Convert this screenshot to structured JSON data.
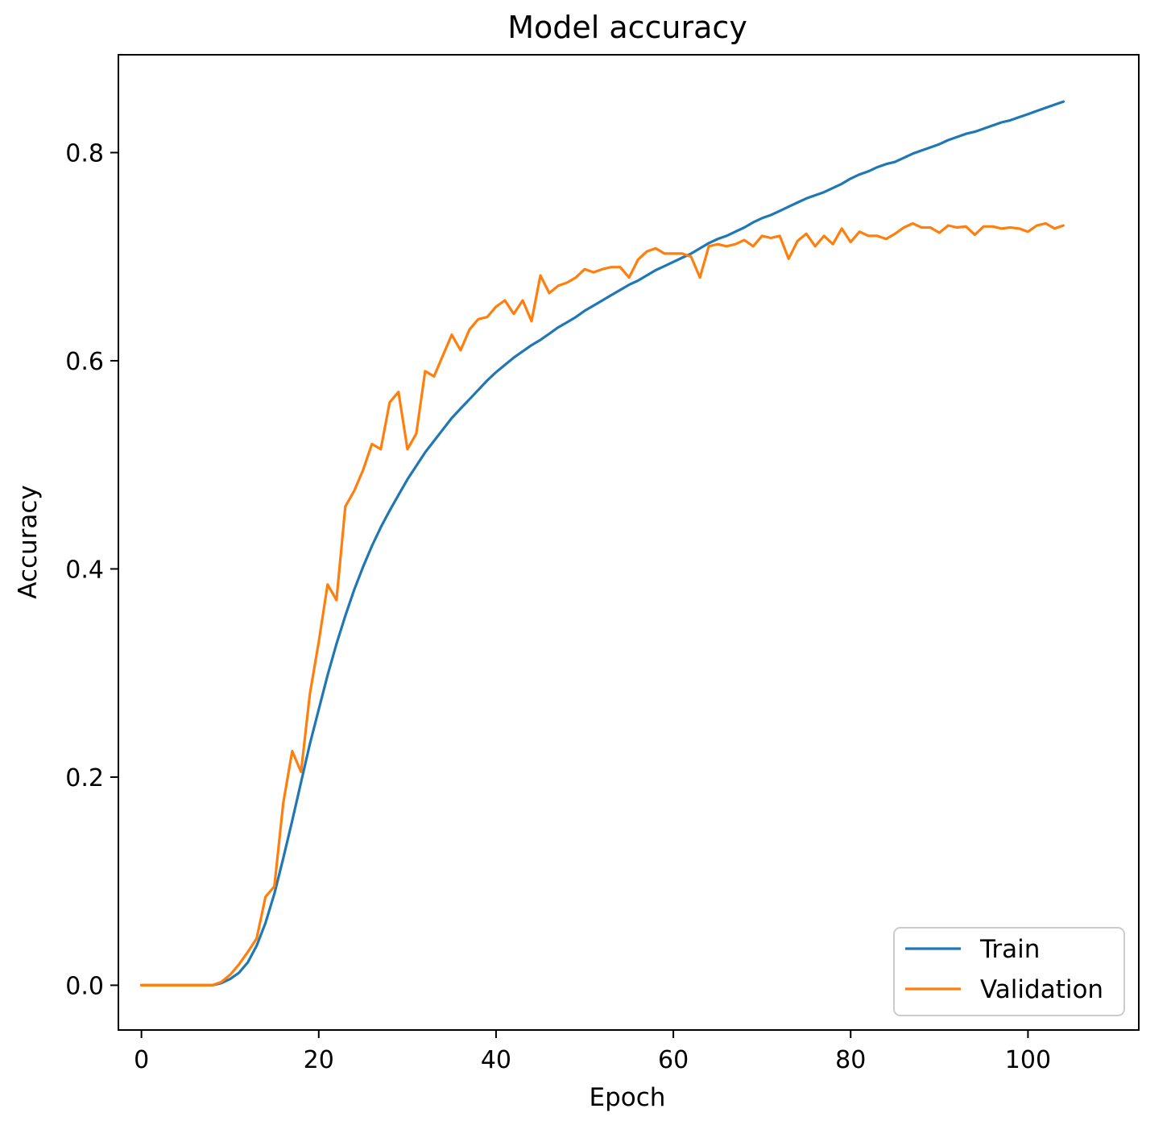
{
  "chart_data": {
    "type": "line",
    "title": "Model accuracy",
    "xlabel": "Epoch",
    "ylabel": "Accuracy",
    "xlim": [
      -2.6,
      112.5
    ],
    "ylim": [
      -0.043,
      0.894
    ],
    "xticks": [
      0,
      20,
      40,
      60,
      80,
      100
    ],
    "yticks": [
      0.0,
      0.2,
      0.4,
      0.6,
      0.8
    ],
    "xtick_labels": [
      "0",
      "20",
      "40",
      "60",
      "80",
      "100"
    ],
    "ytick_labels": [
      "0.0",
      "0.2",
      "0.4",
      "0.6",
      "0.8"
    ],
    "grid": false,
    "legend": {
      "position": "lower-right"
    },
    "series": [
      {
        "name": "Train",
        "color": "#1f77b4",
        "x": [
          0,
          5,
          8,
          9,
          10,
          11,
          12,
          13,
          14,
          15,
          16,
          17,
          18,
          19,
          20,
          21,
          22,
          23,
          24,
          25,
          26,
          27,
          28,
          29,
          30,
          31,
          32,
          33,
          34,
          35,
          36,
          37,
          38,
          39,
          40,
          41,
          42,
          43,
          44,
          45,
          46,
          47,
          48,
          49,
          50,
          51,
          52,
          53,
          54,
          55,
          56,
          57,
          58,
          59,
          60,
          61,
          62,
          63,
          64,
          65,
          66,
          67,
          68,
          69,
          70,
          71,
          72,
          73,
          74,
          75,
          76,
          77,
          78,
          79,
          80,
          81,
          82,
          83,
          84,
          85,
          86,
          87,
          88,
          89,
          90,
          91,
          92,
          93,
          94,
          95,
          96,
          97,
          98,
          99,
          100,
          101,
          102,
          103,
          104
        ],
        "y": [
          0,
          0,
          0,
          0.002,
          0.006,
          0.012,
          0.022,
          0.038,
          0.06,
          0.088,
          0.122,
          0.158,
          0.195,
          0.232,
          0.265,
          0.298,
          0.328,
          0.355,
          0.38,
          0.402,
          0.422,
          0.44,
          0.456,
          0.471,
          0.486,
          0.499,
          0.512,
          0.523,
          0.534,
          0.545,
          0.554,
          0.563,
          0.572,
          0.581,
          0.589,
          0.596,
          0.603,
          0.609,
          0.615,
          0.62,
          0.626,
          0.632,
          0.637,
          0.642,
          0.648,
          0.653,
          0.658,
          0.663,
          0.668,
          0.673,
          0.677,
          0.682,
          0.687,
          0.691,
          0.695,
          0.699,
          0.703,
          0.708,
          0.713,
          0.717,
          0.72,
          0.724,
          0.728,
          0.733,
          0.737,
          0.74,
          0.744,
          0.748,
          0.752,
          0.756,
          0.759,
          0.762,
          0.766,
          0.77,
          0.775,
          0.779,
          0.782,
          0.786,
          0.789,
          0.791,
          0.795,
          0.799,
          0.802,
          0.805,
          0.808,
          0.812,
          0.815,
          0.818,
          0.82,
          0.823,
          0.826,
          0.829,
          0.831,
          0.834,
          0.837,
          0.84,
          0.843,
          0.846,
          0.849
        ]
      },
      {
        "name": "Validation",
        "color": "#ff7f0e",
        "x": [
          0,
          5,
          8,
          9,
          10,
          11,
          12,
          13,
          14,
          15,
          16,
          17,
          18,
          19,
          20,
          21,
          22,
          23,
          24,
          25,
          26,
          27,
          28,
          29,
          30,
          31,
          32,
          33,
          34,
          35,
          36,
          37,
          38,
          39,
          40,
          41,
          42,
          43,
          44,
          45,
          46,
          47,
          48,
          49,
          50,
          51,
          52,
          53,
          54,
          55,
          56,
          57,
          58,
          59,
          60,
          61,
          62,
          63,
          64,
          65,
          66,
          67,
          68,
          69,
          70,
          71,
          72,
          73,
          74,
          75,
          76,
          77,
          78,
          79,
          80,
          81,
          82,
          83,
          84,
          85,
          86,
          87,
          88,
          89,
          90,
          91,
          92,
          93,
          94,
          95,
          96,
          97,
          98,
          99,
          100,
          101,
          102,
          103,
          104
        ],
        "y": [
          0,
          0,
          0,
          0.003,
          0.01,
          0.02,
          0.032,
          0.045,
          0.085,
          0.095,
          0.175,
          0.225,
          0.205,
          0.28,
          0.33,
          0.385,
          0.37,
          0.46,
          0.475,
          0.495,
          0.52,
          0.515,
          0.56,
          0.57,
          0.515,
          0.53,
          0.59,
          0.585,
          0.605,
          0.625,
          0.61,
          0.63,
          0.64,
          0.642,
          0.652,
          0.658,
          0.645,
          0.658,
          0.638,
          0.682,
          0.665,
          0.672,
          0.675,
          0.68,
          0.688,
          0.685,
          0.688,
          0.69,
          0.69,
          0.68,
          0.697,
          0.705,
          0.708,
          0.703,
          0.703,
          0.703,
          0.7,
          0.68,
          0.71,
          0.712,
          0.71,
          0.712,
          0.716,
          0.71,
          0.72,
          0.718,
          0.72,
          0.698,
          0.715,
          0.722,
          0.71,
          0.72,
          0.712,
          0.727,
          0.714,
          0.724,
          0.72,
          0.72,
          0.717,
          0.722,
          0.728,
          0.732,
          0.728,
          0.728,
          0.723,
          0.73,
          0.728,
          0.729,
          0.721,
          0.729,
          0.729,
          0.727,
          0.728,
          0.727,
          0.724,
          0.73,
          0.732,
          0.727,
          0.73
        ]
      }
    ]
  }
}
